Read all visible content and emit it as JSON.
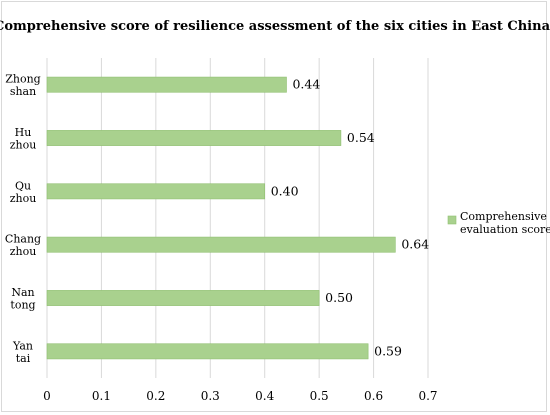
{
  "chart_data": {
    "type": "bar",
    "orientation": "horizontal",
    "title": "Comprehensive score of resilience assessment of the six cities in East China",
    "categories": [
      [
        "Zhong",
        "shan"
      ],
      [
        "Hu",
        "zhou"
      ],
      [
        "Qu",
        "zhou"
      ],
      [
        "Chang",
        "zhou"
      ],
      [
        "Nan",
        "tong"
      ],
      [
        "Yan",
        "tai"
      ]
    ],
    "series": [
      {
        "name": "Comprehensive evaluation score",
        "name_lines": [
          "Comprehensive",
          "evaluation score"
        ],
        "values": [
          0.44,
          0.54,
          0.4,
          0.64,
          0.5,
          0.59
        ],
        "labels": [
          "0.44",
          "0.54",
          "0.40",
          "0.64",
          "0.50",
          "0.59"
        ],
        "color": "#a9d18e",
        "border_color": "#8fbf70"
      }
    ],
    "xlim": [
      0,
      0.7
    ],
    "xticks": [
      "0",
      "0.1",
      "0.2",
      "0.3",
      "0.4",
      "0.5",
      "0.6",
      "0.7"
    ],
    "grid": true,
    "gridline_color": "#d9d9d9",
    "legend_position": "right"
  }
}
